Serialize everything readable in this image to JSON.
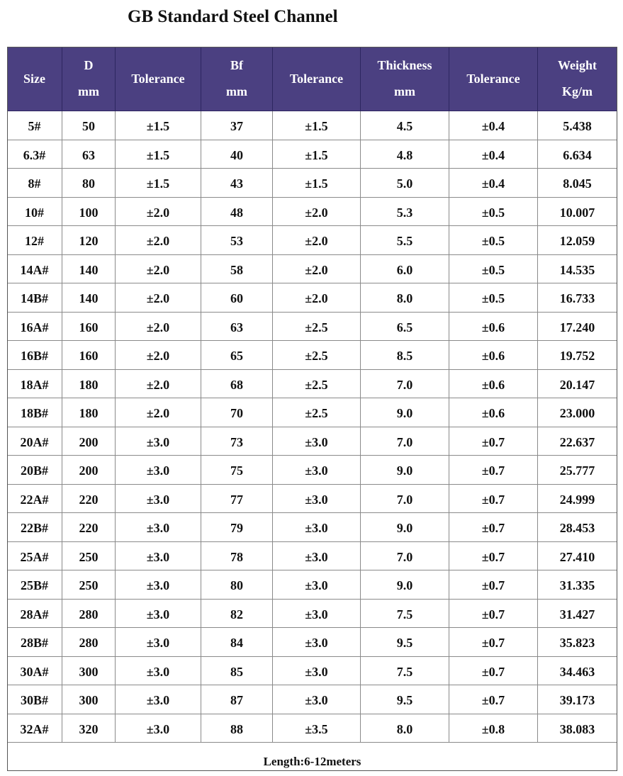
{
  "title": "GB Standard Steel Channel",
  "table": {
    "header": [
      [
        "Size"
      ],
      [
        "D",
        "mm"
      ],
      [
        "Tolerance"
      ],
      [
        "Bf",
        "mm"
      ],
      [
        "Tolerance"
      ],
      [
        "Thickness",
        "mm"
      ],
      [
        "Tolerance"
      ],
      [
        "Weight",
        "Kg/m"
      ]
    ],
    "rows": [
      [
        "5#",
        "50",
        "±1.5",
        "37",
        "±1.5",
        "4.5",
        "±0.4",
        "5.438"
      ],
      [
        "6.3#",
        "63",
        "±1.5",
        "40",
        "±1.5",
        "4.8",
        "±0.4",
        "6.634"
      ],
      [
        "8#",
        "80",
        "±1.5",
        "43",
        "±1.5",
        "5.0",
        "±0.4",
        "8.045"
      ],
      [
        "10#",
        "100",
        "±2.0",
        "48",
        "±2.0",
        "5.3",
        "±0.5",
        "10.007"
      ],
      [
        "12#",
        "120",
        "±2.0",
        "53",
        "±2.0",
        "5.5",
        "±0.5",
        "12.059"
      ],
      [
        "14A#",
        "140",
        "±2.0",
        "58",
        "±2.0",
        "6.0",
        "±0.5",
        "14.535"
      ],
      [
        "14B#",
        "140",
        "±2.0",
        "60",
        "±2.0",
        "8.0",
        "±0.5",
        "16.733"
      ],
      [
        "16A#",
        "160",
        "±2.0",
        "63",
        "±2.5",
        "6.5",
        "±0.6",
        "17.240"
      ],
      [
        "16B#",
        "160",
        "±2.0",
        "65",
        "±2.5",
        "8.5",
        "±0.6",
        "19.752"
      ],
      [
        "18A#",
        "180",
        "±2.0",
        "68",
        "±2.5",
        "7.0",
        "±0.6",
        "20.147"
      ],
      [
        "18B#",
        "180",
        "±2.0",
        "70",
        "±2.5",
        "9.0",
        "±0.6",
        "23.000"
      ],
      [
        "20A#",
        "200",
        "±3.0",
        "73",
        "±3.0",
        "7.0",
        "±0.7",
        "22.637"
      ],
      [
        "20B#",
        "200",
        "±3.0",
        "75",
        "±3.0",
        "9.0",
        "±0.7",
        "25.777"
      ],
      [
        "22A#",
        "220",
        "±3.0",
        "77",
        "±3.0",
        "7.0",
        "±0.7",
        "24.999"
      ],
      [
        "22B#",
        "220",
        "±3.0",
        "79",
        "±3.0",
        "9.0",
        "±0.7",
        "28.453"
      ],
      [
        "25A#",
        "250",
        "±3.0",
        "78",
        "±3.0",
        "7.0",
        "±0.7",
        "27.410"
      ],
      [
        "25B#",
        "250",
        "±3.0",
        "80",
        "±3.0",
        "9.0",
        "±0.7",
        "31.335"
      ],
      [
        "28A#",
        "280",
        "±3.0",
        "82",
        "±3.0",
        "7.5",
        "±0.7",
        "31.427"
      ],
      [
        "28B#",
        "280",
        "±3.0",
        "84",
        "±3.0",
        "9.5",
        "±0.7",
        "35.823"
      ],
      [
        "30A#",
        "300",
        "±3.0",
        "85",
        "±3.0",
        "7.5",
        "±0.7",
        "34.463"
      ],
      [
        "30B#",
        "300",
        "±3.0",
        "87",
        "±3.0",
        "9.5",
        "±0.7",
        "39.173"
      ],
      [
        "32A#",
        "320",
        "±3.0",
        "88",
        "±3.5",
        "8.0",
        "±0.8",
        "38.083"
      ]
    ],
    "footer": "Length:6-12meters"
  }
}
